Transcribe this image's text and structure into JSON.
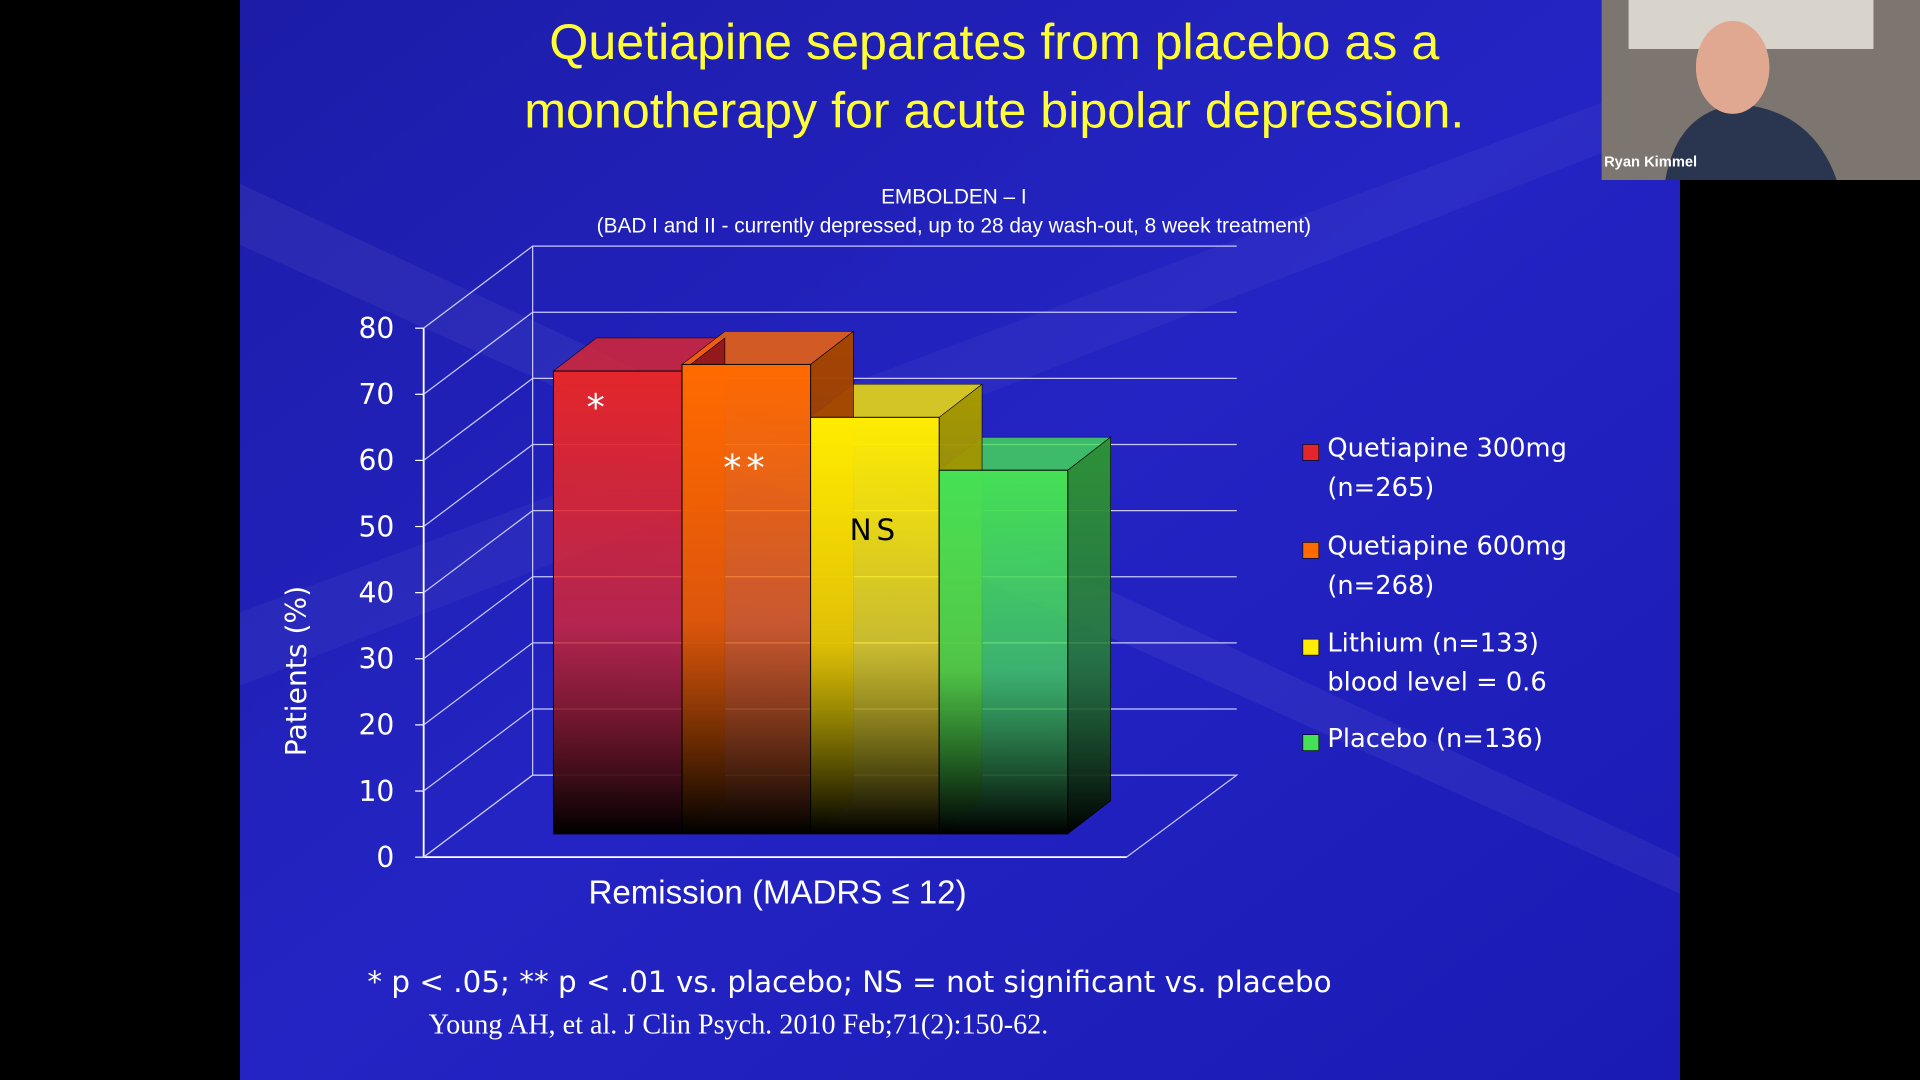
{
  "slide": {
    "title": [
      "Quetiapine separates from placebo as a",
      "monotherapy for acute bipolar depression."
    ],
    "footnote": "* p < .05; ** p < .01 vs. placebo; NS = not significant vs. placebo",
    "citation": "Young AH, et al. J Clin Psych. 2010 Feb;71(2):150-62."
  },
  "participant": {
    "name": "Ryan Kimmel"
  },
  "chart_data": {
    "type": "bar3d",
    "title": "EMBOLDEN – I",
    "subtitle": "(BAD I and II - currently depressed, up to 28 day wash-out, 8 week treatment)",
    "y_label": "Patients (%)",
    "categories": [
      "Remission (MADRS ≤ 12)"
    ],
    "series": [
      {
        "name": "Quetiapine 300mg (n=265)",
        "color": "#e3262b",
        "values": [
          70
        ],
        "annotation": "*"
      },
      {
        "name": "Quetiapine 600mg (n=268)",
        "color": "#ff6a00",
        "values": [
          71
        ],
        "annotation": "**"
      },
      {
        "name": "Lithium (n=133) blood level = 0.6",
        "color": "#ffec00",
        "values": [
          63
        ],
        "annotation": "NS"
      },
      {
        "name": "Placebo (n=136)",
        "color": "#45e055",
        "values": [
          55
        ]
      }
    ],
    "ylim": [
      0,
      80
    ],
    "yticks": [
      0,
      10,
      20,
      30,
      40,
      50,
      60,
      70,
      80
    ],
    "grid": true
  }
}
